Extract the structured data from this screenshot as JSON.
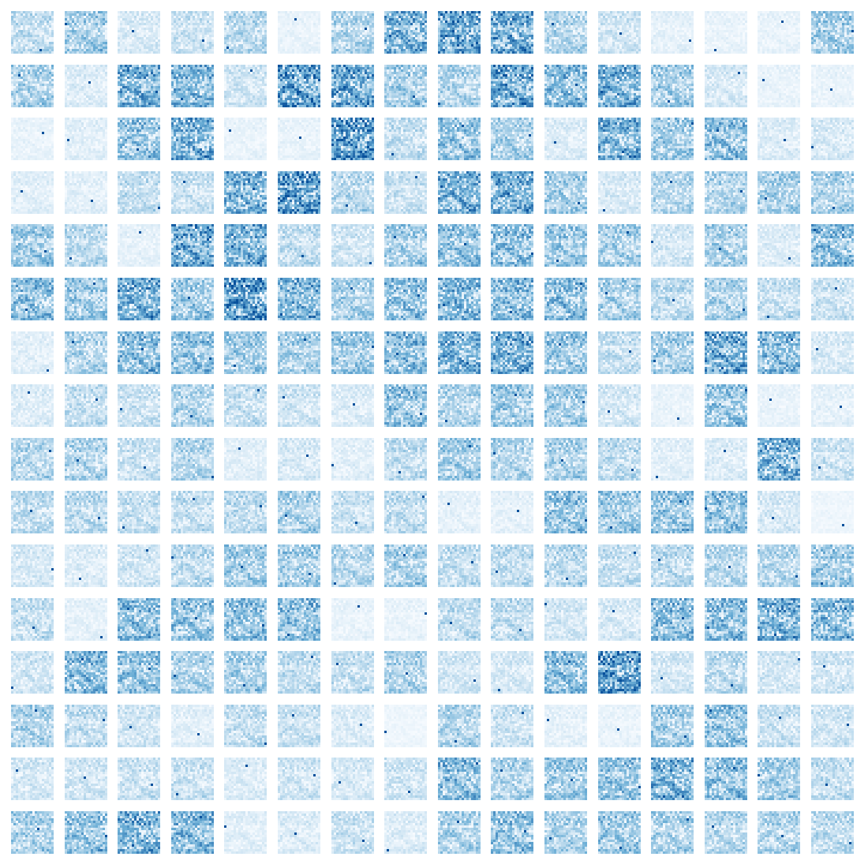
{
  "figure": {
    "rows": 16,
    "cols": 16,
    "colormap": {
      "name": "Blues",
      "low": "#f7fbff",
      "mid": "#6baed6",
      "high": "#08519c"
    },
    "background": "#ffffff",
    "intensity": [
      [
        0.3,
        0.45,
        0.18,
        0.25,
        0.35,
        0.08,
        0.38,
        0.7,
        0.85,
        0.8,
        0.38,
        0.22,
        0.1,
        0.08,
        0.08,
        0.45
      ],
      [
        0.42,
        0.15,
        0.72,
        0.65,
        0.22,
        0.88,
        0.78,
        0.45,
        0.38,
        0.8,
        0.62,
        0.72,
        0.45,
        0.18,
        0.08,
        0.08
      ],
      [
        0.08,
        0.12,
        0.55,
        0.72,
        0.08,
        0.08,
        0.95,
        0.28,
        0.55,
        0.42,
        0.15,
        0.7,
        0.48,
        0.58,
        0.15,
        0.18
      ],
      [
        0.12,
        0.12,
        0.3,
        0.25,
        0.7,
        0.95,
        0.35,
        0.25,
        0.7,
        0.72,
        0.45,
        0.18,
        0.35,
        0.38,
        0.42,
        0.4
      ],
      [
        0.48,
        0.32,
        0.1,
        0.78,
        0.72,
        0.3,
        0.22,
        0.45,
        0.55,
        0.6,
        0.48,
        0.42,
        0.2,
        0.42,
        0.15,
        0.6
      ],
      [
        0.58,
        0.5,
        0.72,
        0.5,
        0.9,
        0.68,
        0.42,
        0.58,
        0.65,
        0.62,
        0.6,
        0.42,
        0.32,
        0.4,
        0.28,
        0.25
      ],
      [
        0.12,
        0.38,
        0.62,
        0.55,
        0.48,
        0.42,
        0.5,
        0.62,
        0.72,
        0.75,
        0.5,
        0.28,
        0.45,
        0.78,
        0.62,
        0.18
      ],
      [
        0.15,
        0.28,
        0.25,
        0.38,
        0.28,
        0.22,
        0.15,
        0.55,
        0.38,
        0.48,
        0.45,
        0.2,
        0.08,
        0.52,
        0.08,
        0.1
      ],
      [
        0.35,
        0.38,
        0.25,
        0.38,
        0.12,
        0.18,
        0.12,
        0.3,
        0.45,
        0.38,
        0.4,
        0.32,
        0.12,
        0.15,
        0.7,
        0.25
      ],
      [
        0.3,
        0.32,
        0.28,
        0.28,
        0.32,
        0.4,
        0.25,
        0.3,
        0.1,
        0.1,
        0.55,
        0.48,
        0.52,
        0.55,
        0.18,
        0.05
      ],
      [
        0.18,
        0.15,
        0.22,
        0.32,
        0.45,
        0.45,
        0.35,
        0.42,
        0.3,
        0.3,
        0.35,
        0.28,
        0.32,
        0.35,
        0.35,
        0.48
      ],
      [
        0.28,
        0.1,
        0.6,
        0.55,
        0.58,
        0.58,
        0.08,
        0.08,
        0.3,
        0.3,
        0.2,
        0.18,
        0.6,
        0.62,
        0.72,
        0.62
      ],
      [
        0.22,
        0.62,
        0.55,
        0.4,
        0.42,
        0.3,
        0.28,
        0.4,
        0.2,
        0.18,
        0.58,
        0.9,
        0.2,
        0.32,
        0.2,
        0.22
      ],
      [
        0.4,
        0.3,
        0.22,
        0.12,
        0.28,
        0.25,
        0.15,
        0.05,
        0.38,
        0.25,
        0.1,
        0.08,
        0.45,
        0.55,
        0.25,
        0.22
      ],
      [
        0.2,
        0.22,
        0.25,
        0.25,
        0.15,
        0.22,
        0.18,
        0.22,
        0.6,
        0.4,
        0.48,
        0.55,
        0.7,
        0.55,
        0.45,
        0.3
      ],
      [
        0.42,
        0.55,
        0.7,
        0.62,
        0.12,
        0.15,
        0.25,
        0.15,
        0.4,
        0.55,
        0.42,
        0.5,
        0.4,
        0.35,
        0.38,
        0.32
      ]
    ]
  }
}
